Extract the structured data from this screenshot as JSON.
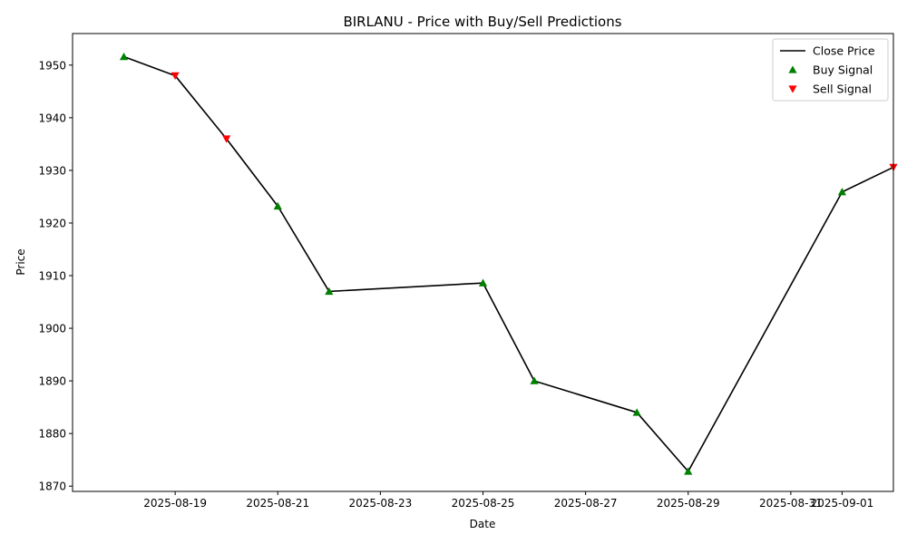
{
  "chart_data": {
    "type": "line",
    "title": "BIRLANU - Price with Buy/Sell Predictions",
    "xlabel": "Date",
    "ylabel": "Price",
    "xlim": [
      "2025-08-17",
      "2025-09-02"
    ],
    "ylim": [
      1869,
      1956
    ],
    "x_ticks": [
      "2025-08-19",
      "2025-08-21",
      "2025-08-23",
      "2025-08-25",
      "2025-08-27",
      "2025-08-29",
      "2025-08-31",
      "2025-09-01"
    ],
    "y_ticks": [
      1870,
      1880,
      1890,
      1900,
      1910,
      1920,
      1930,
      1940,
      1950
    ],
    "grid": false,
    "legend_position": "top-right",
    "series": [
      {
        "name": "Close Price",
        "kind": "line",
        "color": "#000000",
        "points": [
          {
            "x": "2025-08-18",
            "y": 1951.6
          },
          {
            "x": "2025-08-19",
            "y": 1948.0
          },
          {
            "x": "2025-08-20",
            "y": 1936.0
          },
          {
            "x": "2025-08-21",
            "y": 1923.2
          },
          {
            "x": "2025-08-22",
            "y": 1907.0
          },
          {
            "x": "2025-08-25",
            "y": 1908.6
          },
          {
            "x": "2025-08-26",
            "y": 1890.0
          },
          {
            "x": "2025-08-28",
            "y": 1884.0
          },
          {
            "x": "2025-08-29",
            "y": 1872.8
          },
          {
            "x": "2025-09-01",
            "y": 1925.9
          },
          {
            "x": "2025-09-02",
            "y": 1930.6
          }
        ]
      },
      {
        "name": "Buy Signal",
        "kind": "marker",
        "marker": "triangle-up",
        "color": "#008000",
        "points": [
          {
            "x": "2025-08-18",
            "y": 1951.6
          },
          {
            "x": "2025-08-21",
            "y": 1923.2
          },
          {
            "x": "2025-08-22",
            "y": 1907.0
          },
          {
            "x": "2025-08-25",
            "y": 1908.6
          },
          {
            "x": "2025-08-26",
            "y": 1890.0
          },
          {
            "x": "2025-08-28",
            "y": 1884.0
          },
          {
            "x": "2025-08-29",
            "y": 1872.8
          },
          {
            "x": "2025-09-01",
            "y": 1925.9
          }
        ]
      },
      {
        "name": "Sell Signal",
        "kind": "marker",
        "marker": "triangle-down",
        "color": "#ff0000",
        "points": [
          {
            "x": "2025-08-19",
            "y": 1948.0
          },
          {
            "x": "2025-08-20",
            "y": 1936.0
          },
          {
            "x": "2025-09-02",
            "y": 1930.6
          }
        ]
      }
    ]
  }
}
